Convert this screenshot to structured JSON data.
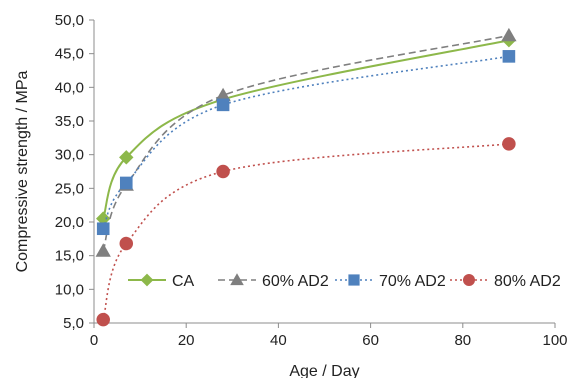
{
  "chart_data": {
    "type": "line",
    "xlabel": "Age / Day",
    "ylabel": "Compressive strength / MPa",
    "xlim": [
      0,
      100
    ],
    "ylim": [
      5,
      50
    ],
    "x_ticks": [
      "0",
      "20",
      "40",
      "60",
      "80",
      "100"
    ],
    "y_ticks": [
      "5,0",
      "10,0",
      "15,0",
      "20,0",
      "25,0",
      "30,0",
      "35,0",
      "40,0",
      "45,0",
      "50,0"
    ],
    "x_tick_values": [
      0,
      20,
      40,
      60,
      80,
      100
    ],
    "y_tick_values": [
      5,
      10,
      15,
      20,
      25,
      30,
      35,
      40,
      45,
      50
    ],
    "grid": false,
    "legend_position": "bottom-right inside plot",
    "series": [
      {
        "name": "CA",
        "color": "#8DB84A",
        "marker": "diamond",
        "line": "solid",
        "x": [
          2,
          7,
          28,
          90
        ],
        "y": [
          20.5,
          29.6,
          38.2,
          47.0
        ]
      },
      {
        "name": "60% AD2",
        "color": "#7F7F7F",
        "marker": "triangle",
        "line": "dashed",
        "x": [
          2,
          7,
          28,
          90
        ],
        "y": [
          15.7,
          25.5,
          38.8,
          47.7
        ]
      },
      {
        "name": "70% AD2",
        "color": "#4F81BD",
        "marker": "square",
        "line": "dotted",
        "x": [
          2,
          7,
          28,
          90
        ],
        "y": [
          19.0,
          25.8,
          37.4,
          44.6
        ]
      },
      {
        "name": "80% AD2",
        "color": "#C0504D",
        "marker": "circle",
        "line": "dotted",
        "x": [
          2,
          7,
          28,
          90
        ],
        "y": [
          5.5,
          16.8,
          27.5,
          31.6
        ]
      }
    ]
  }
}
